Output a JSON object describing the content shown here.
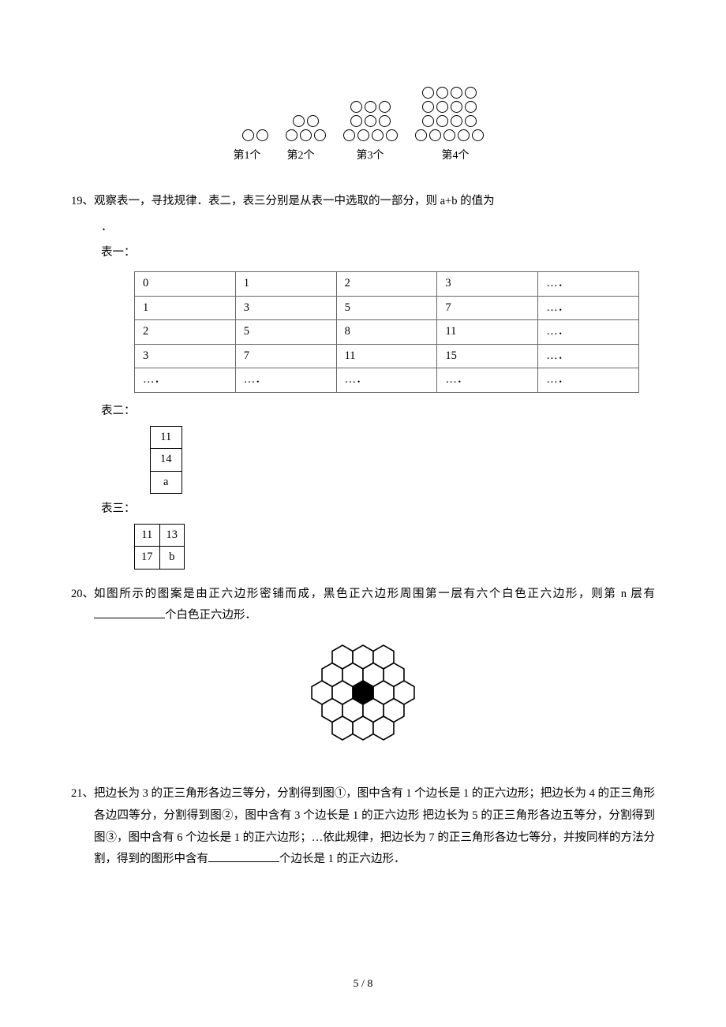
{
  "circles_figure": {
    "piles": [
      {
        "rows": [
          2
        ]
      },
      {
        "rows": [
          2,
          3
        ]
      },
      {
        "rows": [
          3,
          3,
          4
        ]
      },
      {
        "rows": [
          4,
          4,
          4,
          5
        ]
      }
    ],
    "labels": [
      "第1个",
      "第2个",
      "第3个",
      "第4个"
    ]
  },
  "q19": {
    "number": "19、",
    "text": "观察表一，寻找规律．表二，表三分别是从表一中选取的一部分，则 a+b 的值为",
    "table1_label": "表一：",
    "table1": {
      "rows": [
        [
          "0",
          "1",
          "2",
          "3",
          "…．"
        ],
        [
          "1",
          "3",
          "5",
          "7",
          "…．"
        ],
        [
          "2",
          "5",
          "8",
          "11",
          "…．"
        ],
        [
          "3",
          "7",
          "11",
          "15",
          "…．"
        ],
        [
          "…．",
          "…．",
          "…．",
          "…．",
          "…．"
        ]
      ]
    },
    "table2_label": "表二：",
    "table2": {
      "rows": [
        [
          "11"
        ],
        [
          "14"
        ],
        [
          "a"
        ]
      ]
    },
    "table3_label": "表三：",
    "table3": {
      "rows": [
        [
          "11",
          "13"
        ],
        [
          "17",
          "b"
        ]
      ]
    }
  },
  "q20": {
    "number": "20、",
    "text_before": "如图所示的图案是由正六边形密铺而成，黑色正六边形周围第一层有六个白色正六边形，则第 n 层有",
    "text_after": "个白色正六边形．",
    "hex_svg": {
      "width": 170,
      "height": 150,
      "stroke": "#000000",
      "fill_white": "#ffffff",
      "fill_black": "#000000"
    }
  },
  "q21": {
    "number": "21、",
    "text_before": "把边长为 3 的正三角形各边三等分，分割得到图①，图中含有 1 个边长是 1 的正六边形；把边长为 4 的正三角形各边四等分，分割得到图②，图中含有 3 个边长是 1 的正六边形 把边长为 5 的正三角形各边五等分，分割得到图③，图中含有 6 个边长是 1 的正六边形；…依此规律，把边长为 7 的正三角形各边七等分，并按同样的方法分割，得到的图形中含有",
    "text_after": "个边长是 1 的正六边形．"
  },
  "footer": "5 / 8"
}
